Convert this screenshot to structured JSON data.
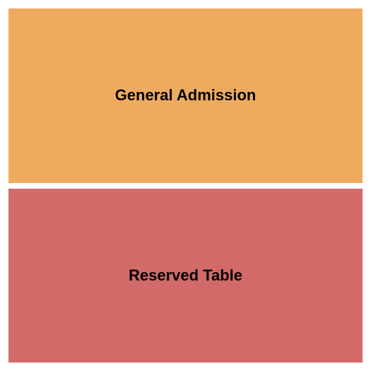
{
  "seating_chart": {
    "type": "infographic",
    "background_color": "#ffffff",
    "gap": 8,
    "padding": 12,
    "sections": [
      {
        "label": "General Admission",
        "background_color": "#eeab5f",
        "text_color": "#000000",
        "font_size": 22,
        "font_weight": "bold"
      },
      {
        "label": "Reserved Table",
        "background_color": "#d36a6a",
        "text_color": "#000000",
        "font_size": 22,
        "font_weight": "bold"
      }
    ]
  }
}
